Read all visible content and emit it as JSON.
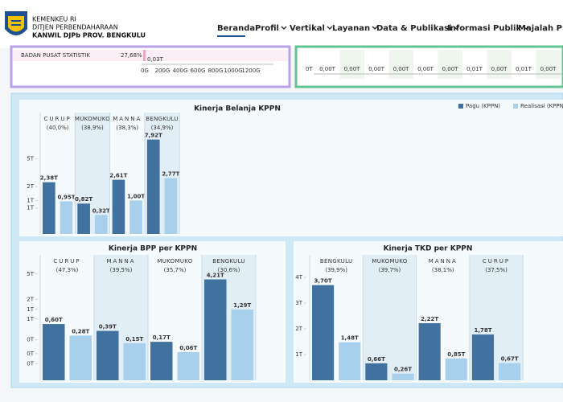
{
  "header": {
    "org": [
      "KEMENKEU RI",
      "DITJEN PERBENDAHARAAN",
      "KANWIL DJPb PROV. BENGKULU"
    ]
  },
  "nav": [
    "Beranda",
    "Profil",
    "Vertikal",
    "Layanan",
    "Data & Publikasi",
    "Informasi Publik",
    "Majalah PEND"
  ],
  "top_left": {
    "label": "BADAN PUSAT STATISTIK",
    "share": "27,68%",
    "value_label": "0,03T",
    "axis_labels": [
      "0G",
      "200G",
      "400G",
      "600G",
      "800G",
      "1000G",
      "1200G"
    ]
  },
  "top_right": {
    "axis_label": "0T",
    "value_labels": [
      "0,00T",
      "0,00T",
      "0,00T",
      "0,00T",
      "0,00T",
      "0,00T",
      "0,01T",
      "0,00T",
      "0,01T",
      "0,00T"
    ]
  },
  "charts": [
    {
      "type": "bar",
      "title": "Kinerja Belanja KPPN",
      "scale": "sqrt",
      "exponent": 0.5,
      "ylim": [
        0,
        8
      ],
      "legend": "top-right",
      "yticks": [
        {
          "value": 5,
          "label": "5T"
        },
        {
          "value": 2,
          "label": "2T"
        },
        {
          "value": 1,
          "label": "1T"
        },
        {
          "value": 0.6,
          "label": "1T"
        }
      ],
      "groups": [
        {
          "name": "CURUP",
          "share": "(40,0%)"
        },
        {
          "name": "MUKOMUKO",
          "share": "(38,9%)"
        },
        {
          "name": "MANNA",
          "share": "(38,3%)"
        },
        {
          "name": "BENGKULU",
          "share": "(34,9%)"
        }
      ],
      "series": [
        {
          "name": "Pagu (KPPN)",
          "color": "#41719f",
          "values": [
            2.38,
            0.82,
            2.61,
            7.92
          ],
          "value_labels": [
            "2,38T",
            "0,82T",
            "2,61T",
            "7,92T"
          ]
        },
        {
          "name": "Realisasi (KPPN)",
          "color": "#a8d0ec",
          "values": [
            0.95,
            0.32,
            1.0,
            2.77
          ],
          "value_labels": [
            "0,95T",
            "0,32T",
            "1,00T",
            "2,77T"
          ]
        }
      ]
    },
    {
      "type": "bar",
      "title": "Kinerja BPP per KPPN",
      "scale": "pow",
      "exponent": 0.3,
      "ylim": [
        0,
        4.5
      ],
      "yticks": [
        {
          "value": 5,
          "label": "5T"
        },
        {
          "value": 2,
          "label": "2T"
        },
        {
          "value": 1.3,
          "label": "1T"
        },
        {
          "value": 0.8,
          "label": "1T"
        },
        {
          "value": 0.2,
          "label": "0T"
        },
        {
          "value": 0.05,
          "label": "0T"
        },
        {
          "value": 0.01,
          "label": "0T"
        }
      ],
      "groups": [
        {
          "name": "CURUP",
          "share": "(47,3%)"
        },
        {
          "name": "MANNA",
          "share": "(39,5%)"
        },
        {
          "name": "MUKOMUKO",
          "share": "(35,7%)"
        },
        {
          "name": "BENGKULU",
          "share": "(30,6%)"
        }
      ],
      "series": [
        {
          "name": "Pagu (KPPN)",
          "color": "#41719f",
          "values": [
            0.6,
            0.39,
            0.17,
            4.21
          ],
          "value_labels": [
            "0,60T",
            "0,39T",
            "0,17T",
            "4,21T"
          ]
        },
        {
          "name": "Realisasi (KPPN)",
          "color": "#a8d0ec",
          "values": [
            0.28,
            0.15,
            0.06,
            1.29
          ],
          "value_labels": [
            "0,28T",
            "0,15T",
            "0,06T",
            "1,29T"
          ]
        }
      ]
    },
    {
      "type": "bar",
      "title": "Kinerja TKD per KPPN",
      "scale": "linear",
      "exponent": 1,
      "ylim": [
        0,
        4
      ],
      "yticks": [
        {
          "value": 4,
          "label": "4T"
        },
        {
          "value": 3,
          "label": "3T"
        },
        {
          "value": 2,
          "label": "2T"
        },
        {
          "value": 1,
          "label": "1T"
        }
      ],
      "groups": [
        {
          "name": "BENGKULU",
          "share": "(39,9%)"
        },
        {
          "name": "MUKOMUKO",
          "share": "(39,7%)"
        },
        {
          "name": "MANNA",
          "share": "(38,1%)"
        },
        {
          "name": "CURUP",
          "share": "(37,5%)"
        }
      ],
      "series": [
        {
          "name": "Pagu (KPPN)",
          "color": "#41719f",
          "values": [
            3.7,
            0.66,
            2.22,
            1.78
          ],
          "value_labels": [
            "3,70T",
            "0,66T",
            "2,22T",
            "1,78T"
          ]
        },
        {
          "name": "Realisasi (KPPN)",
          "color": "#a8d0ec",
          "values": [
            1.48,
            0.26,
            0.85,
            0.67
          ],
          "value_labels": [
            "1,48T",
            "0,26T",
            "0,85T",
            "0,67T"
          ]
        }
      ]
    }
  ]
}
